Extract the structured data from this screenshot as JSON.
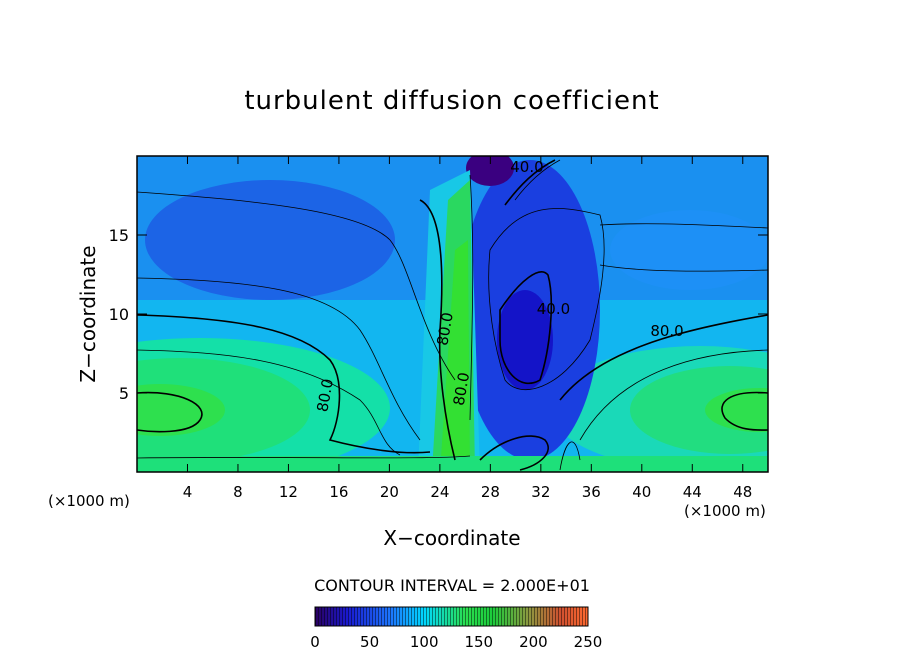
{
  "chart_data": {
    "type": "heatmap",
    "title": "turbulent diffusion coefficient",
    "xlabel": "X−coordinate",
    "ylabel": "Z−coordinate",
    "x_unit": "(×1000 m)",
    "y_unit": "(×1000 m)",
    "xlim": [
      0,
      50
    ],
    "ylim": [
      0,
      20
    ],
    "x_ticks": [
      4,
      8,
      12,
      16,
      20,
      24,
      28,
      32,
      36,
      40,
      44,
      48
    ],
    "y_ticks": [
      5,
      10,
      15
    ],
    "contour_interval_label": "CONTOUR INTERVAL = 2.000E+01",
    "contour_interval": 20,
    "contour_labels": [
      {
        "text": "40.0",
        "x": 30.9,
        "z": 19.0
      },
      {
        "text": "40.0",
        "x": 33.0,
        "z": 10.0
      },
      {
        "text": "80.0",
        "x": 42.0,
        "z": 8.6
      },
      {
        "text": "80.0",
        "x": 24.8,
        "z": 9.0
      },
      {
        "text": "80.0",
        "x": 15.3,
        "z": 4.8
      },
      {
        "text": "80.0",
        "x": 26.1,
        "z": 5.2
      }
    ],
    "colorbar": {
      "min": 0,
      "max": 250,
      "tick_values": [
        0,
        50,
        100,
        150,
        200,
        250
      ],
      "tick_labels": [
        "0",
        "50",
        "100",
        "150",
        "200",
        "250"
      ]
    },
    "colors": {
      "low": "#3a00a0",
      "mid_low": "#1e6cf0",
      "mid": "#00c8ff",
      "mid_high": "#21e03a",
      "high": "#ff4a00"
    }
  }
}
